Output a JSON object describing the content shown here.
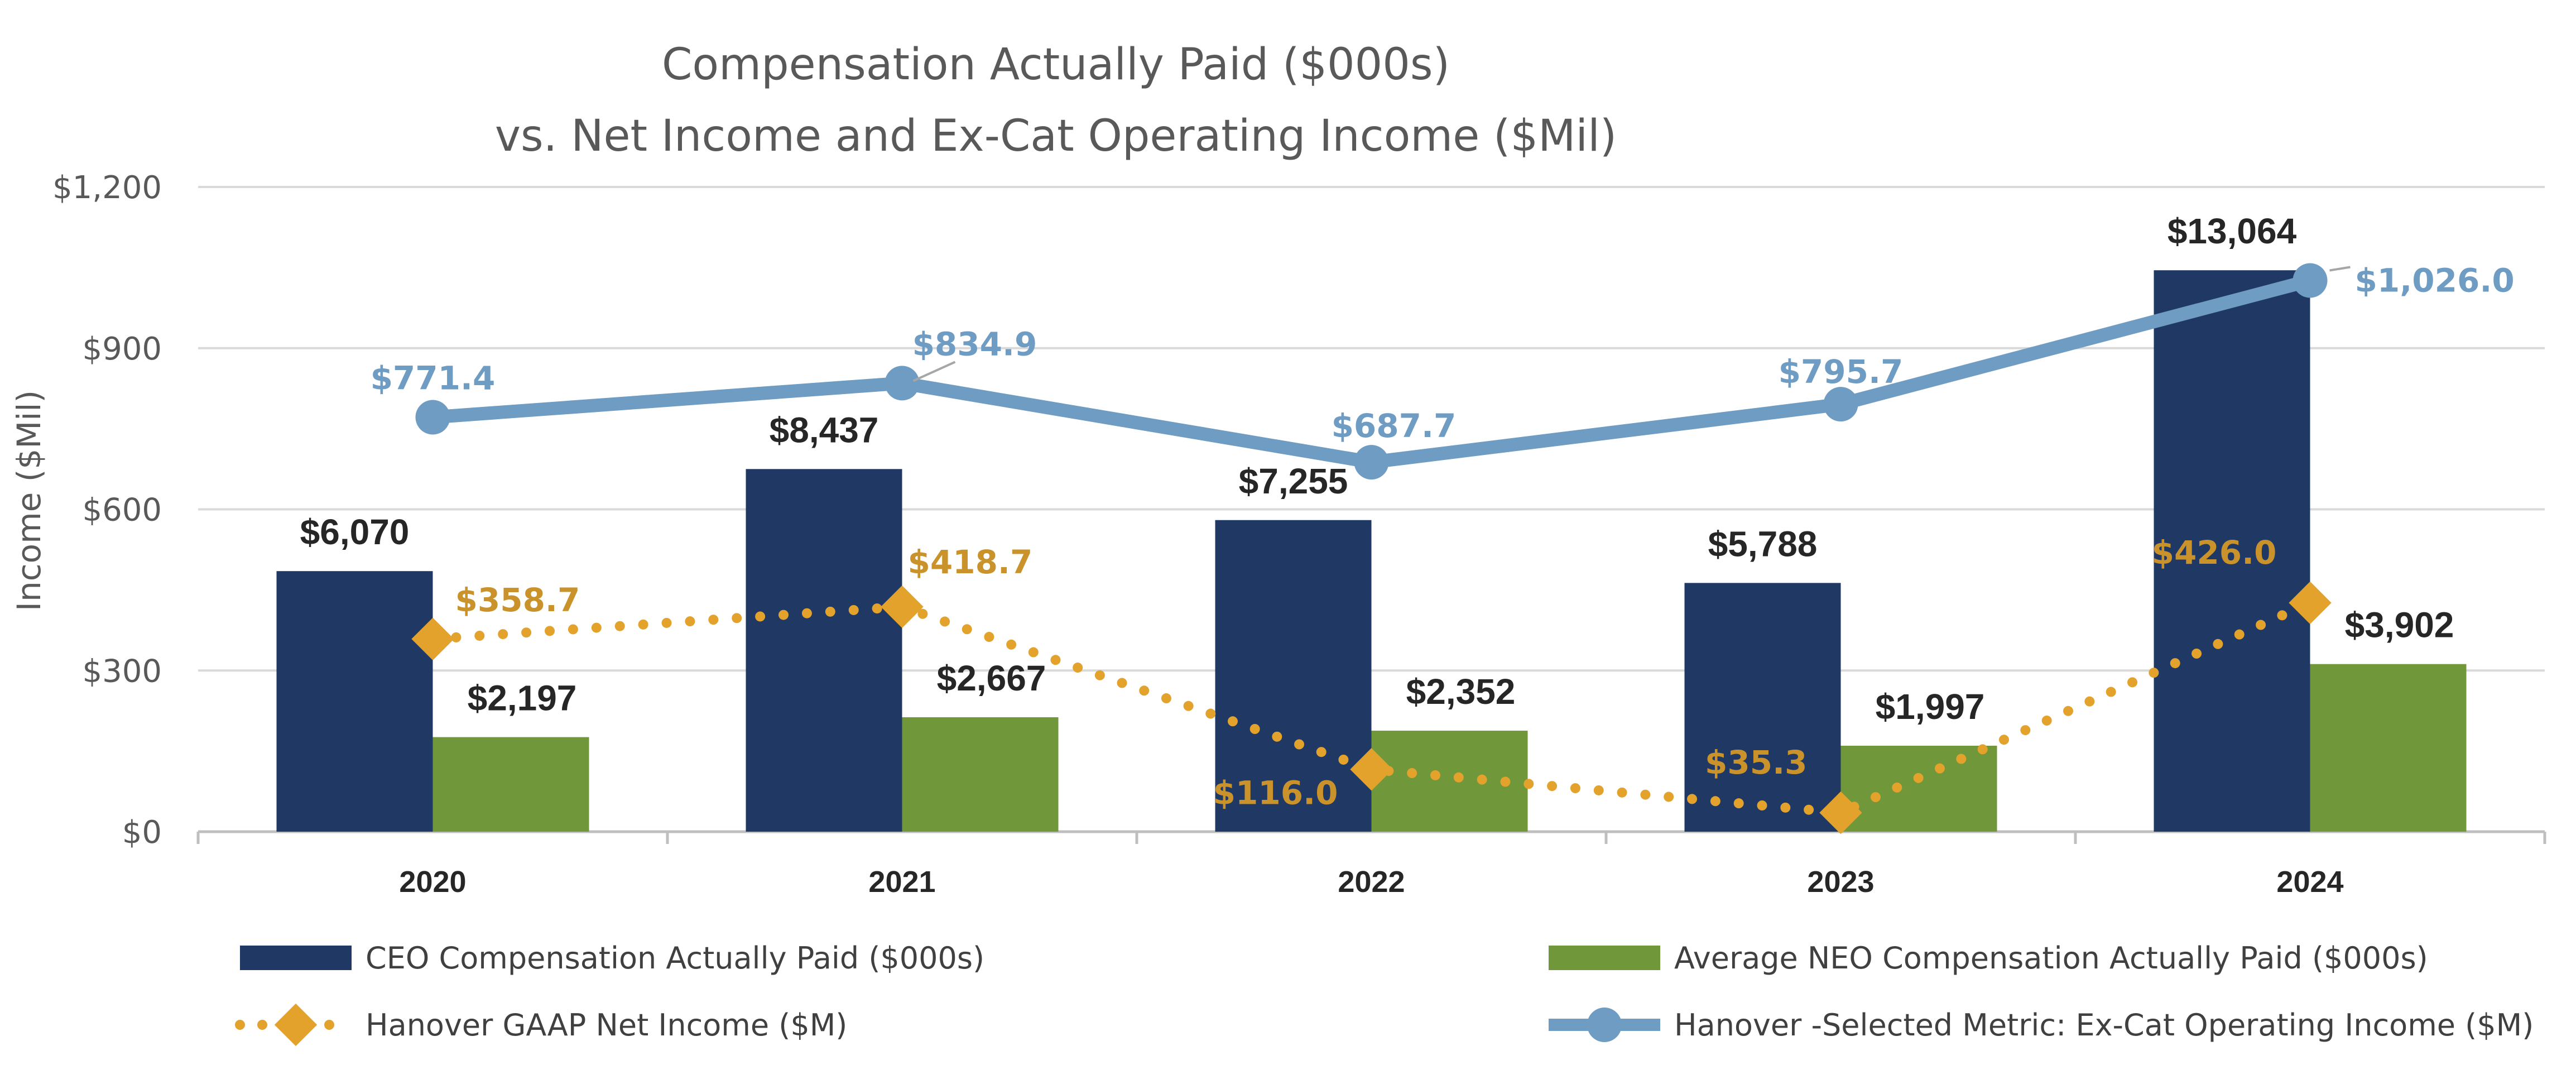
{
  "colors": {
    "ceo": "#1f3864",
    "neo": "#70973a",
    "net": "#e2a22c",
    "net_label": "#c9922a",
    "excat": "#6f9cc3",
    "grid": "#d9d9d9",
    "axis": "#bfbfbf"
  },
  "chart_data": {
    "type": "bar",
    "title": [
      "Compensation Actually Paid ($000s)",
      "vs. Net Income and Ex-Cat Operating Income ($Mil)"
    ],
    "ylabel": "Income ($Mil)",
    "ylim": [
      0,
      1200
    ],
    "yticks": [
      0,
      300,
      600,
      900,
      1200
    ],
    "ytick_labels": [
      "$0",
      "$300",
      "$600",
      "$900",
      "$1,200"
    ],
    "grid": true,
    "categories": [
      "2020",
      "2021",
      "2022",
      "2023",
      "2024"
    ],
    "series": [
      {
        "name": "CEO Compensation Actually Paid ($000s)",
        "kind": "bar",
        "values": [
          485,
          675,
          580,
          463,
          1045
        ],
        "labels": [
          "$6,070",
          "$8,437",
          "$7,255",
          "$5,788",
          "$13,064"
        ]
      },
      {
        "name": "Average NEO Compensation Actually Paid ($000s)",
        "kind": "bar",
        "values": [
          176,
          213,
          188,
          160,
          312
        ],
        "labels": [
          "$2,197",
          "$2,667",
          "$2,352",
          "$1,997",
          "$3,902"
        ]
      },
      {
        "name": "Hanover GAAP Net Income ($M)",
        "kind": "line-dotted",
        "values": [
          358.7,
          418.7,
          116.0,
          35.3,
          426.0
        ],
        "labels": [
          "$358.7",
          "$418.7",
          "$116.0",
          "$35.3",
          "$426.0"
        ]
      },
      {
        "name": "Hanover -Selected Metric: Ex-Cat Operating Income ($M)",
        "kind": "line",
        "values": [
          771.4,
          834.9,
          687.7,
          795.7,
          1026.0
        ],
        "labels": [
          "$771.4",
          "$834.9",
          "$687.7",
          "$795.7",
          "$1,026.0"
        ]
      }
    ],
    "legend": [
      {
        "name": "CEO Compensation Actually Paid ($000s)",
        "kind": "bar",
        "series": 0
      },
      {
        "name": "Average NEO Compensation Actually Paid ($000s)",
        "kind": "bar",
        "series": 1
      },
      {
        "name": "Hanover GAAP Net Income ($M)",
        "kind": "line-dotted",
        "series": 2
      },
      {
        "name": "Hanover -Selected Metric: Ex-Cat Operating Income ($M)",
        "kind": "line",
        "series": 3
      }
    ],
    "legend_position": "bottom"
  }
}
